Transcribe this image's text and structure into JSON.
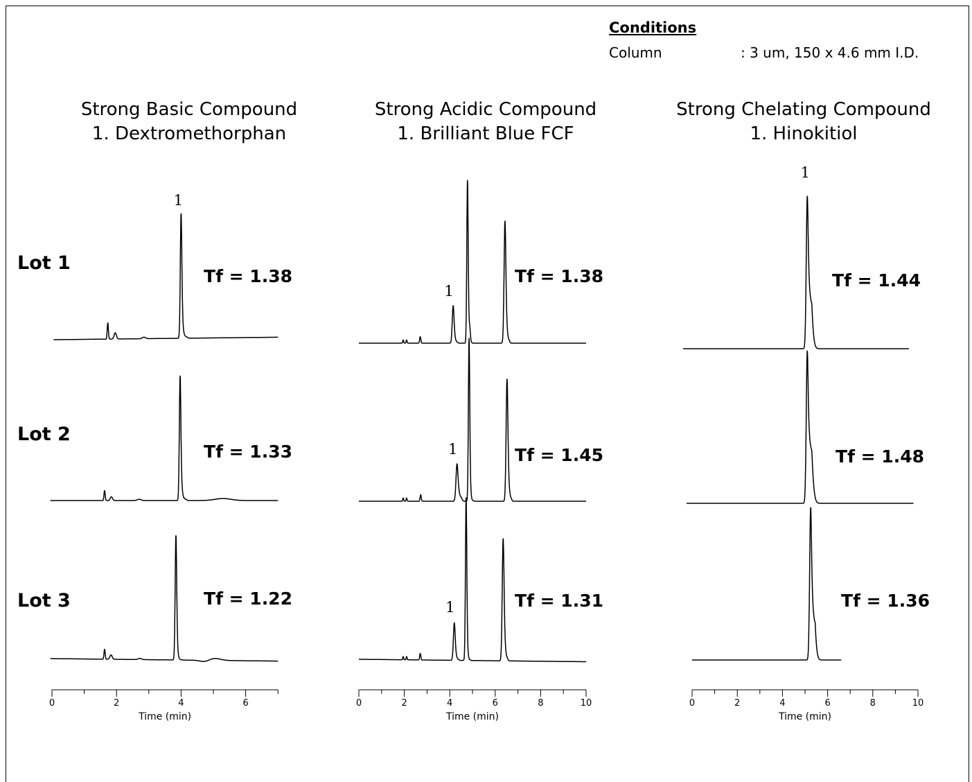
{
  "conditions": {
    "heading": "Conditions",
    "rows": [
      {
        "label": "Column",
        "value": ":  3 um, 150 x 4.6 mm I.D."
      }
    ]
  },
  "lot_labels": [
    "Lot 1",
    "Lot 2",
    "Lot 3"
  ],
  "colors": {
    "trace": "#000000",
    "background": "#ffffff"
  },
  "chart_data": [
    {
      "type": "line",
      "title_lines": [
        "Strong Basic Compound",
        "1. Dextromethorphan"
      ],
      "xlabel": "Time (min)",
      "xlim": [
        0,
        7
      ],
      "xticks": [
        0,
        2,
        4,
        6
      ],
      "peak_label": "1",
      "traces": [
        {
          "lot": "Lot 1",
          "tf": "Tf = 1.38",
          "baseline_drift": -0.02,
          "peaks": [
            {
              "time": 1.73,
              "height": 0.13,
              "width": 0.018
            },
            {
              "time": 1.96,
              "height": 0.05,
              "width": 0.035
            },
            {
              "time": 2.85,
              "height": 0.012,
              "width": 0.05
            },
            {
              "time": 4.0,
              "height": 1.0,
              "width": 0.024,
              "tail": 0.06,
              "labeled": true
            }
          ]
        },
        {
          "lot": "Lot 2",
          "tf": "Tf = 1.33",
          "baseline_drift": 0.0,
          "peaks": [
            {
              "time": 1.63,
              "height": 0.08,
              "width": 0.018
            },
            {
              "time": 1.84,
              "height": 0.03,
              "width": 0.035
            },
            {
              "time": 2.7,
              "height": 0.01,
              "width": 0.06
            },
            {
              "time": 3.97,
              "height": 1.0,
              "width": 0.024,
              "tail": 0.06
            },
            {
              "time": 5.3,
              "height": 0.016,
              "width": 0.25
            }
          ]
        },
        {
          "lot": "Lot 3",
          "tf": "Tf = 1.22",
          "baseline_drift": 0.02,
          "peaks": [
            {
              "time": 1.63,
              "height": 0.08,
              "width": 0.018
            },
            {
              "time": 1.83,
              "height": 0.035,
              "width": 0.035
            },
            {
              "time": 2.72,
              "height": 0.01,
              "width": 0.05
            },
            {
              "time": 3.84,
              "height": 1.0,
              "width": 0.024,
              "tail": 0.05
            },
            {
              "time": 4.75,
              "height": -0.016,
              "width": 0.15
            },
            {
              "time": 5.0,
              "height": 0.018,
              "width": 0.2
            }
          ]
        }
      ]
    },
    {
      "type": "line",
      "title_lines": [
        "Strong Acidic Compound",
        "1. Brilliant Blue FCF"
      ],
      "xlabel": "Time (min)",
      "xlim": [
        0,
        10
      ],
      "xticks": [
        0,
        2,
        4,
        6,
        8,
        10
      ],
      "peak_label": "1",
      "traces": [
        {
          "lot": "Lot 1",
          "tf": "Tf = 1.38",
          "baseline_drift": 0.0,
          "peaks": [
            {
              "time": 1.95,
              "height": 0.02,
              "width": 0.02
            },
            {
              "time": 2.1,
              "height": 0.02,
              "width": 0.02
            },
            {
              "time": 2.7,
              "height": 0.04,
              "width": 0.025
            },
            {
              "time": 4.15,
              "height": 0.23,
              "width": 0.04,
              "tail": 0.06,
              "labeled": true
            },
            {
              "time": 4.78,
              "height": 1.0,
              "width": 0.03,
              "tail": 0.05
            },
            {
              "time": 4.88,
              "height": 0.07,
              "width": 0.03
            },
            {
              "time": 6.43,
              "height": 0.75,
              "width": 0.04,
              "tail": 0.06
            }
          ]
        },
        {
          "lot": "Lot 2",
          "tf": "Tf = 1.45",
          "baseline_drift": 0.0,
          "peaks": [
            {
              "time": 1.95,
              "height": 0.02,
              "width": 0.02
            },
            {
              "time": 2.1,
              "height": 0.02,
              "width": 0.02
            },
            {
              "time": 2.72,
              "height": 0.04,
              "width": 0.025
            },
            {
              "time": 4.32,
              "height": 0.23,
              "width": 0.045,
              "tail": 0.08,
              "labeled": true
            },
            {
              "time": 4.85,
              "height": 1.0,
              "width": 0.03,
              "tail": 0.05
            },
            {
              "time": 6.52,
              "height": 0.75,
              "width": 0.04,
              "tail": 0.06
            }
          ]
        },
        {
          "lot": "Lot 3",
          "tf": "Tf = 1.31",
          "baseline_drift": 0.015,
          "peaks": [
            {
              "time": 1.95,
              "height": 0.02,
              "width": 0.02
            },
            {
              "time": 2.1,
              "height": 0.02,
              "width": 0.02
            },
            {
              "time": 2.7,
              "height": 0.04,
              "width": 0.025
            },
            {
              "time": 4.2,
              "height": 0.23,
              "width": 0.04,
              "tail": 0.06,
              "labeled": true
            },
            {
              "time": 4.72,
              "height": 1.0,
              "width": 0.03,
              "tail": 0.05
            },
            {
              "time": 6.35,
              "height": 0.75,
              "width": 0.04,
              "tail": 0.06
            }
          ]
        }
      ]
    },
    {
      "type": "line",
      "title_lines": [
        "Strong Chelating Compound",
        "1. Hinokitiol"
      ],
      "xlabel": "Time (min)",
      "xlim": [
        0,
        10
      ],
      "xticks": [
        0,
        2,
        4,
        6,
        8,
        10
      ],
      "peak_label": "1",
      "traces": [
        {
          "lot": "Lot 1",
          "tf": "Tf = 1.44",
          "baseline_drift": 0.0,
          "peaks": [
            {
              "time": 5.1,
              "height": 1.0,
              "width": 0.045,
              "tail": 0.12,
              "labeled": true
            }
          ]
        },
        {
          "lot": "Lot 2",
          "tf": "Tf = 1.48",
          "baseline_drift": 0.0,
          "peaks": [
            {
              "time": 5.1,
              "height": 1.0,
              "width": 0.045,
              "tail": 0.13
            }
          ]
        },
        {
          "lot": "Lot 3",
          "tf": "Tf = 1.36",
          "baseline_drift": 0.0,
          "peaks": [
            {
              "time": 5.25,
              "height": 1.0,
              "width": 0.045,
              "tail": 0.11
            }
          ]
        }
      ]
    }
  ]
}
